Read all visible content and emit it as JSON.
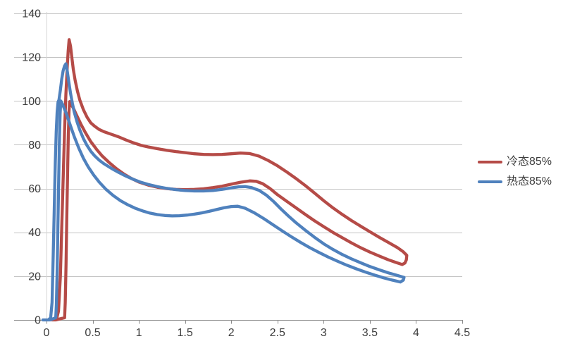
{
  "chart_data": {
    "type": "line",
    "title": "",
    "xlabel": "",
    "ylabel": "",
    "xlim": [
      0,
      4.5
    ],
    "ylim": [
      0,
      140
    ],
    "x_ticks": [
      0,
      0.5,
      1,
      1.5,
      2,
      2.5,
      3,
      3.5,
      4,
      4.5
    ],
    "x_tick_labels": [
      "0",
      "0.5",
      "1",
      "1.5",
      "2",
      "2.5",
      "3",
      "3.5",
      "4",
      "4.5"
    ],
    "y_ticks": [
      0,
      20,
      40,
      60,
      80,
      100,
      120,
      140
    ],
    "y_tick_labels": [
      "0",
      "20",
      "40",
      "60",
      "80",
      "100",
      "120",
      "140"
    ],
    "grid": true,
    "legend_position": "right",
    "colors": {
      "grid": "#c4c4c4",
      "axis": "#8c8c8c",
      "y_axis_line": "#d6d6d6",
      "tick_label": "#3d3d3d",
      "legend_text": "#3d3d3d",
      "background": "#ffffff",
      "series_red": "#b54b47",
      "series_blue": "#4f81bd"
    },
    "series": [
      {
        "name": "冷态85%",
        "color": "#b54b47",
        "shape": "closed-loop",
        "peak_value": 128,
        "points": [
          [
            0.06,
            0
          ],
          [
            0.11,
            0.5
          ],
          [
            0.13,
            4
          ],
          [
            0.15,
            20
          ],
          [
            0.165,
            42
          ],
          [
            0.18,
            64
          ],
          [
            0.195,
            86
          ],
          [
            0.21,
            103
          ],
          [
            0.225,
            116
          ],
          [
            0.235,
            123
          ],
          [
            0.245,
            128
          ],
          [
            0.26,
            125
          ],
          [
            0.275,
            119.5
          ],
          [
            0.29,
            114.5
          ],
          [
            0.31,
            109.5
          ],
          [
            0.335,
            104.5
          ],
          [
            0.36,
            100.5
          ],
          [
            0.4,
            96
          ],
          [
            0.44,
            92.5
          ],
          [
            0.48,
            90
          ],
          [
            0.52,
            88.5
          ],
          [
            0.57,
            87
          ],
          [
            0.62,
            86
          ],
          [
            0.7,
            84.8
          ],
          [
            0.78,
            83.6
          ],
          [
            0.86,
            82.2
          ],
          [
            0.94,
            80.9
          ],
          [
            1.02,
            79.8
          ],
          [
            1.1,
            79
          ],
          [
            1.2,
            78.2
          ],
          [
            1.3,
            77.5
          ],
          [
            1.4,
            76.9
          ],
          [
            1.5,
            76.4
          ],
          [
            1.6,
            75.9
          ],
          [
            1.7,
            75.6
          ],
          [
            1.8,
            75.5
          ],
          [
            1.9,
            75.6
          ],
          [
            2.0,
            75.9
          ],
          [
            2.1,
            76.2
          ],
          [
            2.2,
            76
          ],
          [
            2.3,
            74.8
          ],
          [
            2.4,
            72.8
          ],
          [
            2.5,
            70.4
          ],
          [
            2.6,
            67.6
          ],
          [
            2.7,
            64.6
          ],
          [
            2.8,
            61.4
          ],
          [
            2.9,
            58
          ],
          [
            3.0,
            54.5
          ],
          [
            3.1,
            51.2
          ],
          [
            3.2,
            48.2
          ],
          [
            3.3,
            45.4
          ],
          [
            3.4,
            42.8
          ],
          [
            3.5,
            40.3
          ],
          [
            3.6,
            37.8
          ],
          [
            3.7,
            35.4
          ],
          [
            3.8,
            33
          ],
          [
            3.86,
            31.2
          ],
          [
            3.9,
            29.5
          ],
          [
            3.895,
            27.5
          ],
          [
            3.88,
            26
          ],
          [
            3.85,
            25.3
          ],
          [
            3.78,
            26.3
          ],
          [
            3.7,
            27.5
          ],
          [
            3.6,
            29.2
          ],
          [
            3.5,
            31
          ],
          [
            3.4,
            33
          ],
          [
            3.3,
            35.2
          ],
          [
            3.2,
            37.6
          ],
          [
            3.1,
            40
          ],
          [
            3.0,
            42.6
          ],
          [
            2.9,
            45.3
          ],
          [
            2.8,
            48.2
          ],
          [
            2.7,
            51.2
          ],
          [
            2.6,
            54.2
          ],
          [
            2.5,
            57.2
          ],
          [
            2.42,
            60
          ],
          [
            2.34,
            62.2
          ],
          [
            2.27,
            63.3
          ],
          [
            2.2,
            63.5
          ],
          [
            2.1,
            62.9
          ],
          [
            2.0,
            62
          ],
          [
            1.9,
            61.1
          ],
          [
            1.8,
            60.4
          ],
          [
            1.7,
            59.9
          ],
          [
            1.6,
            59.6
          ],
          [
            1.5,
            59.5
          ],
          [
            1.4,
            59.6
          ],
          [
            1.3,
            60
          ],
          [
            1.2,
            60.6
          ],
          [
            1.1,
            61.6
          ],
          [
            1.0,
            63
          ],
          [
            0.92,
            64.6
          ],
          [
            0.84,
            66.6
          ],
          [
            0.76,
            69
          ],
          [
            0.68,
            71.8
          ],
          [
            0.6,
            75
          ],
          [
            0.54,
            78
          ],
          [
            0.48,
            81.4
          ],
          [
            0.42,
            85.6
          ],
          [
            0.37,
            89.6
          ],
          [
            0.32,
            94
          ],
          [
            0.29,
            96.8
          ],
          [
            0.265,
            98.6
          ],
          [
            0.25,
            99.7
          ],
          [
            0.243,
            95
          ],
          [
            0.235,
            82
          ],
          [
            0.227,
            65
          ],
          [
            0.219,
            45
          ],
          [
            0.211,
            25
          ],
          [
            0.203,
            8
          ],
          [
            0.196,
            1
          ],
          [
            0.1,
            0
          ],
          [
            0.06,
            0
          ]
        ]
      },
      {
        "name": "热态85%",
        "color": "#4f81bd",
        "shape": "closed-loop",
        "peak_value": 117,
        "points": [
          [
            -0.04,
            0
          ],
          [
            0.02,
            0
          ],
          [
            0.045,
            1
          ],
          [
            0.06,
            8
          ],
          [
            0.072,
            28
          ],
          [
            0.085,
            52
          ],
          [
            0.095,
            72
          ],
          [
            0.105,
            86
          ],
          [
            0.115,
            95
          ],
          [
            0.125,
            99.5
          ],
          [
            0.135,
            100.5
          ],
          [
            0.15,
            105
          ],
          [
            0.165,
            110
          ],
          [
            0.18,
            113.8
          ],
          [
            0.195,
            116
          ],
          [
            0.21,
            117
          ],
          [
            0.225,
            113.5
          ],
          [
            0.24,
            109
          ],
          [
            0.26,
            103.5
          ],
          [
            0.28,
            99
          ],
          [
            0.3,
            95
          ],
          [
            0.33,
            90.5
          ],
          [
            0.36,
            86.8
          ],
          [
            0.4,
            82.8
          ],
          [
            0.44,
            79.6
          ],
          [
            0.48,
            77
          ],
          [
            0.52,
            75
          ],
          [
            0.57,
            73
          ],
          [
            0.62,
            71.4
          ],
          [
            0.7,
            69.3
          ],
          [
            0.78,
            67.4
          ],
          [
            0.86,
            65.7
          ],
          [
            0.94,
            64.2
          ],
          [
            1.02,
            62.9
          ],
          [
            1.1,
            61.9
          ],
          [
            1.2,
            60.9
          ],
          [
            1.3,
            60.1
          ],
          [
            1.4,
            59.5
          ],
          [
            1.5,
            59.1
          ],
          [
            1.6,
            58.9
          ],
          [
            1.7,
            58.9
          ],
          [
            1.8,
            59.1
          ],
          [
            1.9,
            59.6
          ],
          [
            2.0,
            60.3
          ],
          [
            2.08,
            60.8
          ],
          [
            2.15,
            60.9
          ],
          [
            2.22,
            60.4
          ],
          [
            2.3,
            59.2
          ],
          [
            2.38,
            57
          ],
          [
            2.46,
            54
          ],
          [
            2.54,
            50.6
          ],
          [
            2.62,
            47.4
          ],
          [
            2.7,
            44.4
          ],
          [
            2.8,
            41
          ],
          [
            2.9,
            37.8
          ],
          [
            3.0,
            34.8
          ],
          [
            3.1,
            32.2
          ],
          [
            3.2,
            29.9
          ],
          [
            3.3,
            27.9
          ],
          [
            3.4,
            26.1
          ],
          [
            3.5,
            24.4
          ],
          [
            3.6,
            22.9
          ],
          [
            3.7,
            21.5
          ],
          [
            3.8,
            20.3
          ],
          [
            3.87,
            19.4
          ],
          [
            3.862,
            18.2
          ],
          [
            3.83,
            17.3
          ],
          [
            3.74,
            18.2
          ],
          [
            3.65,
            19.2
          ],
          [
            3.55,
            20.5
          ],
          [
            3.45,
            21.9
          ],
          [
            3.35,
            23.4
          ],
          [
            3.25,
            25
          ],
          [
            3.15,
            26.8
          ],
          [
            3.05,
            28.7
          ],
          [
            2.95,
            30.8
          ],
          [
            2.85,
            33
          ],
          [
            2.75,
            35.4
          ],
          [
            2.65,
            38
          ],
          [
            2.55,
            40.7
          ],
          [
            2.45,
            43.5
          ],
          [
            2.35,
            46.3
          ],
          [
            2.25,
            48.9
          ],
          [
            2.15,
            51
          ],
          [
            2.07,
            51.9
          ],
          [
            2.0,
            51.8
          ],
          [
            1.92,
            51.2
          ],
          [
            1.84,
            50.4
          ],
          [
            1.76,
            49.6
          ],
          [
            1.68,
            48.9
          ],
          [
            1.6,
            48.3
          ],
          [
            1.52,
            47.9
          ],
          [
            1.44,
            47.6
          ],
          [
            1.36,
            47.5
          ],
          [
            1.28,
            47.7
          ],
          [
            1.2,
            48.1
          ],
          [
            1.12,
            48.8
          ],
          [
            1.04,
            49.8
          ],
          [
            0.96,
            51
          ],
          [
            0.88,
            52.6
          ],
          [
            0.8,
            54.5
          ],
          [
            0.72,
            56.9
          ],
          [
            0.64,
            59.8
          ],
          [
            0.57,
            63
          ],
          [
            0.51,
            66.2
          ],
          [
            0.45,
            70
          ],
          [
            0.4,
            73.8
          ],
          [
            0.35,
            78.4
          ],
          [
            0.3,
            83.8
          ],
          [
            0.26,
            88.6
          ],
          [
            0.22,
            93.6
          ],
          [
            0.19,
            96.8
          ],
          [
            0.17,
            98.8
          ],
          [
            0.155,
            100
          ],
          [
            0.147,
            94
          ],
          [
            0.139,
            80
          ],
          [
            0.131,
            62
          ],
          [
            0.123,
            42
          ],
          [
            0.115,
            22
          ],
          [
            0.107,
            7
          ],
          [
            0.1,
            1
          ],
          [
            0.04,
            0
          ],
          [
            -0.04,
            0
          ]
        ]
      }
    ],
    "legend": {
      "items": [
        {
          "label": "冷态85%",
          "color": "#b54b47"
        },
        {
          "label": "热态85%",
          "color": "#4f81bd"
        }
      ]
    }
  }
}
